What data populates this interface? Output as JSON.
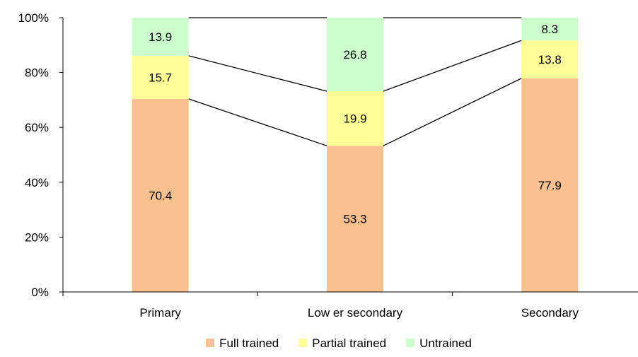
{
  "chart_data": {
    "type": "bar",
    "stacked": true,
    "percent_stacked": true,
    "categories": [
      "Primary",
      "Low er secondary",
      "Secondary"
    ],
    "series": [
      {
        "name": "Full trained",
        "values": [
          70.4,
          53.3,
          77.9
        ],
        "color": "#FAC090"
      },
      {
        "name": "Partial trained",
        "values": [
          15.7,
          19.9,
          13.8
        ],
        "color": "#FFFF99"
      },
      {
        "name": "Untrained",
        "values": [
          13.9,
          26.8,
          8.3
        ],
        "color": "#CCFFCC"
      }
    ],
    "y_ticks": [
      "0%",
      "20%",
      "40%",
      "60%",
      "80%",
      "100%"
    ],
    "ylim": [
      0,
      100
    ],
    "grid": false,
    "series_lines": true,
    "legend_position": "bottom"
  }
}
